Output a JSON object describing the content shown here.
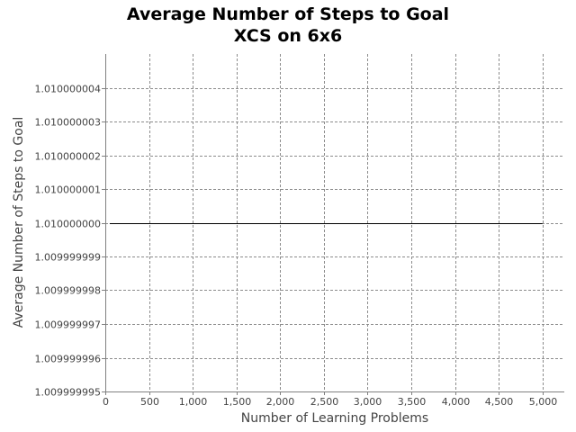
{
  "chart_data": {
    "type": "line",
    "title": "Average Number of Steps to Goal",
    "subtitle": "XCS on 6x6",
    "xlabel": "Number of Learning Problems",
    "ylabel": "Average Number of Steps to Goal",
    "xlim": [
      0,
      5250
    ],
    "ylim": [
      1.009999995,
      1.010000005
    ],
    "x_ticks": [
      0,
      500,
      1000,
      1500,
      2000,
      2500,
      3000,
      3500,
      4000,
      4500,
      5000
    ],
    "x_tick_labels": [
      "0",
      "500",
      "1,000",
      "1,500",
      "2,000",
      "2,500",
      "3,000",
      "3,500",
      "4,000",
      "4,500",
      "5,000"
    ],
    "y_ticks": [
      1.009999995,
      1.009999996,
      1.009999997,
      1.009999998,
      1.009999999,
      1.01,
      1.010000001,
      1.010000002,
      1.010000003,
      1.010000004
    ],
    "y_tick_labels": [
      "1.009999995",
      "1.009999996",
      "1.009999997",
      "1.009999998",
      "1.009999999",
      "1.010000000",
      "1.010000001",
      "1.010000002",
      "1.010000003",
      "1.010000004"
    ],
    "grid": true,
    "series": [
      {
        "x": [
          50,
          5000
        ],
        "y": [
          1.01,
          1.01
        ]
      }
    ]
  }
}
